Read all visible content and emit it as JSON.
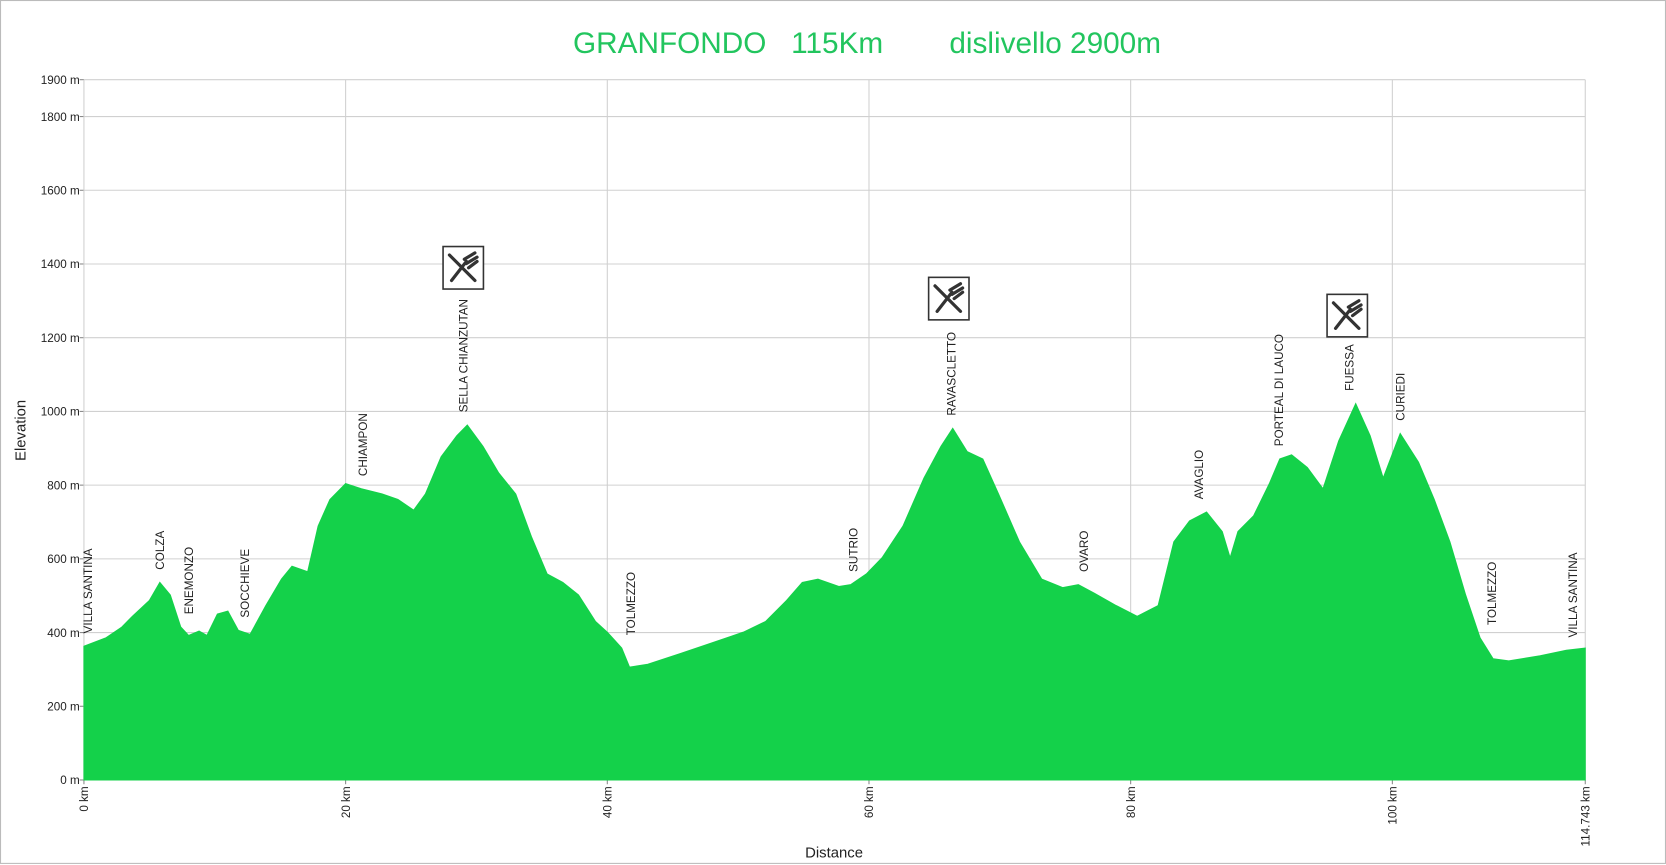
{
  "chart_data": {
    "type": "area",
    "title": "GRANFONDO   115Km        dislivello 2900m",
    "x_label": "Distance",
    "y_label": "Elevation",
    "color": "#14d14a",
    "grid": true,
    "xlim": [
      0,
      114.743
    ],
    "ylim": [
      0,
      1900
    ],
    "xticks": [
      {
        "value": 0,
        "label": "0 km"
      },
      {
        "value": 20,
        "label": "20 km"
      },
      {
        "value": 40,
        "label": "40 km"
      },
      {
        "value": 60,
        "label": "60 km"
      },
      {
        "value": 80,
        "label": "80 km"
      },
      {
        "value": 100,
        "label": "100 km"
      },
      {
        "value": 114.743,
        "label": "114.743 km"
      }
    ],
    "yticks": [
      {
        "value": 0,
        "label": "0 m"
      },
      {
        "value": 200,
        "label": "200 m"
      },
      {
        "value": 400,
        "label": "400 m"
      },
      {
        "value": 600,
        "label": "600 m"
      },
      {
        "value": 800,
        "label": "800 m"
      },
      {
        "value": 1000,
        "label": "1000 m"
      },
      {
        "value": 1200,
        "label": "1200 m"
      },
      {
        "value": 1400,
        "label": "1400 m"
      },
      {
        "value": 1600,
        "label": "1600 m"
      },
      {
        "value": 1800,
        "label": "1800 m"
      },
      {
        "value": 1900,
        "label": "1900 m"
      }
    ],
    "x": [
      0,
      1.7,
      2.9,
      3.7,
      5.0,
      5.8,
      6.6,
      7.4,
      8.0,
      8.8,
      9.4,
      10.2,
      11.0,
      11.8,
      12.7,
      13.9,
      15.1,
      15.9,
      17.1,
      17.9,
      18.8,
      20.0,
      21.2,
      22.8,
      24.0,
      25.2,
      26.1,
      27.3,
      28.5,
      29.3,
      30.5,
      31.7,
      33.0,
      34.2,
      35.4,
      36.6,
      37.8,
      39.1,
      40.0,
      41.1,
      41.7,
      43.1,
      45.6,
      48.0,
      50.4,
      52.1,
      53.7,
      54.9,
      56.1,
      57.7,
      58.6,
      59.8,
      61.0,
      62.6,
      64.2,
      65.5,
      66.4,
      67.5,
      68.7,
      69.9,
      71.5,
      73.2,
      74.8,
      76.0,
      77.2,
      78.9,
      80.5,
      82.1,
      83.3,
      84.5,
      85.8,
      87.0,
      87.6,
      88.2,
      89.4,
      90.6,
      91.4,
      92.3,
      93.5,
      94.7,
      95.9,
      97.2,
      98.3,
      99.3,
      100.6,
      102.0,
      103.2,
      104.4,
      105.6,
      106.7,
      107.7,
      108.9,
      111.3,
      113.3,
      114.743
    ],
    "series": [
      {
        "name": "Elevation",
        "values": [
          363,
          386,
          415,
          444,
          487,
          536,
          502,
          415,
          392,
          404,
          392,
          450,
          458,
          406,
          395,
          473,
          545,
          580,
          565,
          689,
          761,
          804,
          790,
          776,
          761,
          732,
          776,
          877,
          934,
          963,
          905,
          833,
          776,
          660,
          559,
          536,
          502,
          430,
          401,
          358,
          306,
          314,
          343,
          372,
          401,
          430,
          487,
          536,
          545,
          525,
          530,
          559,
          603,
          689,
          819,
          905,
          954,
          891,
          871,
          776,
          646,
          545,
          522,
          530,
          507,
          473,
          444,
          473,
          646,
          703,
          727,
          674,
          603,
          674,
          717,
          804,
          871,
          882,
          848,
          790,
          920,
          1021,
          934,
          819,
          940,
          862,
          761,
          646,
          502,
          386,
          329,
          323,
          337,
          352,
          358
        ]
      }
    ],
    "places": [
      {
        "label": "VILLA SANTINA",
        "x": 0.3
      },
      {
        "label": "COLZA",
        "x": 5.8
      },
      {
        "label": "ENEMONZO",
        "x": 8.0
      },
      {
        "label": "SOCCHIEVE",
        "x": 12.3
      },
      {
        "label": "CHIAMPON",
        "x": 21.3
      },
      {
        "label": "SELLA CHIANZUTAN",
        "x": 29.0
      },
      {
        "label": "TOLMEZZO",
        "x": 41.8
      },
      {
        "label": "SUTRIO",
        "x": 58.8
      },
      {
        "label": "RAVASCLETTO",
        "x": 66.3
      },
      {
        "label": "OVARO",
        "x": 76.4
      },
      {
        "label": "AVAGLIO",
        "x": 85.2
      },
      {
        "label": "PORTEAL DI LAUCO",
        "x": 91.3
      },
      {
        "label": "FUESSA",
        "x": 96.7
      },
      {
        "label": "CURIEDI",
        "x": 100.6
      },
      {
        "label": "TOLMEZZO",
        "x": 107.6
      },
      {
        "label": "VILLA SANTINA",
        "x": 113.8
      }
    ]
  }
}
